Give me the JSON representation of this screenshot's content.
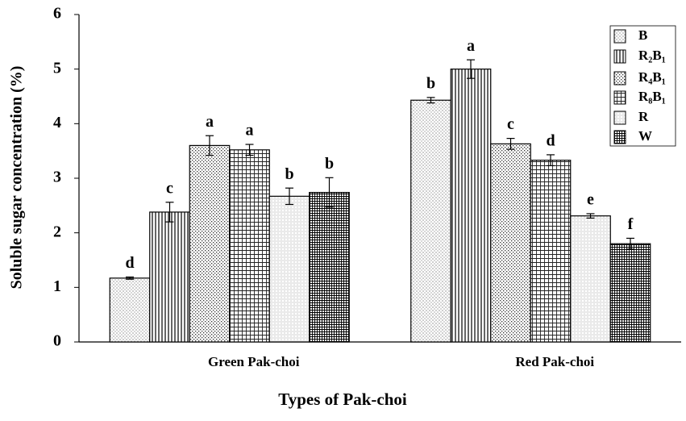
{
  "chart_data": {
    "type": "bar",
    "x_label": "Types of Pak-choi",
    "y_label": "Soluble sugar concentration (%)",
    "categories": [
      "Green Pak-choi",
      "Red Pak-choi"
    ],
    "ylim": [
      0,
      6
    ],
    "yticks": [
      0,
      1,
      2,
      3,
      4,
      5,
      6
    ],
    "legend": "top-right",
    "series": [
      {
        "name": "B",
        "color": "#000000",
        "pattern": "dots",
        "values": [
          1.17,
          4.43
        ],
        "errors": [
          0.02,
          0.05
        ],
        "letters": [
          "d",
          "b"
        ]
      },
      {
        "name": "R₂B₁",
        "color": "#000000",
        "pattern": "vlines",
        "values": [
          2.38,
          5.0
        ],
        "errors": [
          0.18,
          0.17
        ],
        "letters": [
          "c",
          "a"
        ]
      },
      {
        "name": "R₄B₁",
        "color": "#000000",
        "pattern": "checker",
        "values": [
          3.6,
          3.63
        ],
        "errors": [
          0.18,
          0.1
        ],
        "letters": [
          "a",
          "c"
        ]
      },
      {
        "name": "R₈B₁",
        "color": "#000000",
        "pattern": "grid",
        "values": [
          3.52,
          3.33
        ],
        "errors": [
          0.1,
          0.1
        ],
        "letters": [
          "a",
          "d"
        ]
      },
      {
        "name": "R",
        "color": "#000000",
        "pattern": "hlines",
        "values": [
          2.67,
          2.31
        ],
        "errors": [
          0.15,
          0.04
        ],
        "letters": [
          "b",
          "e"
        ]
      },
      {
        "name": "W",
        "color": "#000000",
        "pattern": "densegrid",
        "values": [
          2.74,
          1.8
        ],
        "errors": [
          0.27,
          0.1
        ],
        "letters": [
          "b",
          "f"
        ]
      }
    ]
  }
}
